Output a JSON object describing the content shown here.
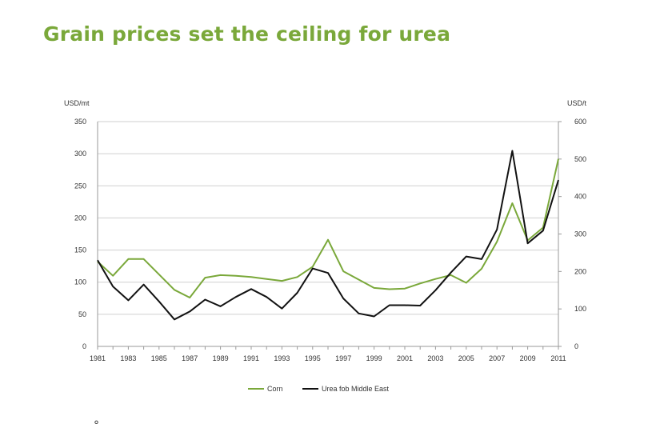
{
  "slide": {
    "title": "Grain prices set the ceiling for urea"
  },
  "colors": {
    "title": "#7aa83a",
    "corn": "#7aa83a",
    "urea": "#111111",
    "grid": "#cfcfcf"
  },
  "corner_glyph": "°",
  "chart_data": {
    "type": "line",
    "xlabel": "",
    "ylabel_left": "USD/mt",
    "ylabel_right": "USD/t",
    "x": [
      1981,
      1982,
      1983,
      1984,
      1985,
      1986,
      1987,
      1988,
      1989,
      1990,
      1991,
      1992,
      1993,
      1994,
      1995,
      1996,
      1997,
      1998,
      1999,
      2000,
      2001,
      2002,
      2003,
      2004,
      2005,
      2006,
      2007,
      2008,
      2009,
      2010,
      2011
    ],
    "x_tick_labels": [
      "1981",
      "1983",
      "1985",
      "1987",
      "1989",
      "1991",
      "1993",
      "1995",
      "1997",
      "1999",
      "2001",
      "2003",
      "2005",
      "2007",
      "2009",
      "2011"
    ],
    "ylim_left": [
      0,
      350
    ],
    "y_ticks_left": [
      "0",
      "50",
      "100",
      "150",
      "200",
      "250",
      "300",
      "350"
    ],
    "ylim_right": [
      0,
      600
    ],
    "y_ticks_right": [
      "0",
      "100",
      "200",
      "300",
      "400",
      "500",
      "600"
    ],
    "grid": "horizontal",
    "legend_position": "bottom",
    "series": [
      {
        "name": "Corn",
        "axis": "left",
        "color": "#7aa83a",
        "values": [
          132,
          110,
          136,
          136,
          112,
          88,
          76,
          107,
          111,
          110,
          108,
          105,
          102,
          108,
          124,
          166,
          117,
          104,
          91,
          89,
          90,
          98,
          105,
          111,
          99,
          121,
          163,
          223,
          165,
          185,
          292
        ]
      },
      {
        "name": "Urea fob Middle East",
        "axis": "right",
        "color": "#111111",
        "values": [
          230,
          160,
          123,
          165,
          120,
          72,
          93,
          125,
          107,
          132,
          153,
          132,
          101,
          143,
          208,
          196,
          128,
          88,
          80,
          110,
          110,
          109,
          150,
          197,
          240,
          233,
          312,
          522,
          275,
          309,
          444
        ]
      }
    ]
  }
}
